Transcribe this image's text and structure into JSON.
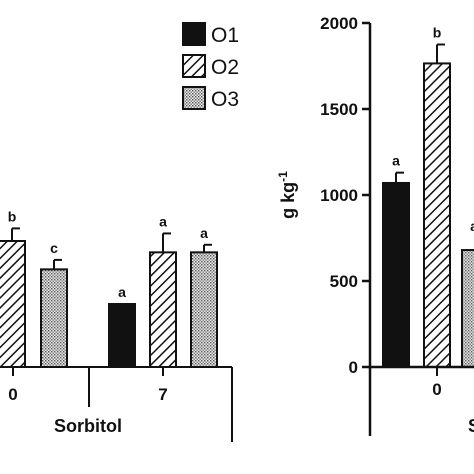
{
  "chart_data": [
    {
      "type": "bar",
      "xlabel": "Sorbitol",
      "ylabel": "",
      "categories": [
        "0",
        "7"
      ],
      "series": [
        {
          "name": "O1",
          "values": [
            null,
            1.0
          ],
          "letters": [
            "",
            "a"
          ]
        },
        {
          "name": "O2",
          "values": [
            2.0,
            1.82
          ],
          "letters": [
            "b",
            "a"
          ],
          "errors": [
            0.2,
            0.3
          ]
        },
        {
          "name": "O3",
          "values": [
            1.55,
            1.82
          ],
          "letters": [
            "c",
            "a"
          ],
          "errors": [
            0.15,
            0.12
          ]
        }
      ],
      "note": "left panel cropped at image edge; no y-axis ticks visible"
    },
    {
      "type": "bar",
      "xlabel": "S",
      "ylabel": "g kg",
      "ylabel_sup": "-1",
      "ylim": [
        0,
        2000
      ],
      "yticks": [
        "0",
        "500",
        "1000",
        "1500",
        "2000"
      ],
      "categories": [
        "0"
      ],
      "series": [
        {
          "name": "O1",
          "values": [
            1070
          ],
          "errors": [
            60
          ],
          "letters": [
            "a"
          ]
        },
        {
          "name": "O2",
          "values": [
            1765
          ],
          "errors": [
            110
          ],
          "letters": [
            "b"
          ]
        },
        {
          "name": "O3",
          "values": [
            680
          ],
          "errors": [
            0
          ],
          "letters": [
            ""
          ]
        }
      ],
      "partial_letter": "a"
    }
  ],
  "legend": {
    "placement": "top-center",
    "entries": [
      {
        "label": "O1",
        "pattern": "solid"
      },
      {
        "label": "O2",
        "pattern": "hatch"
      },
      {
        "label": "O3",
        "pattern": "dots"
      }
    ]
  }
}
